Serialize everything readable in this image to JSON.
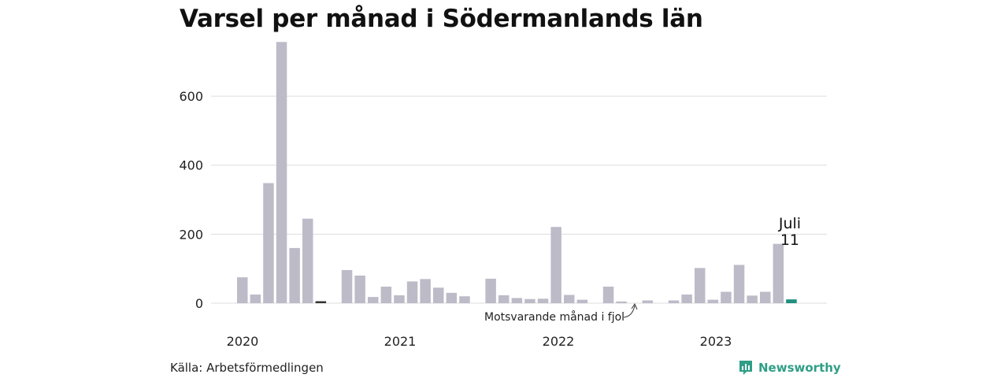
{
  "title": "Varsel per månad i Södermanlands län",
  "source": "Källa: Arbetsförmedlingen",
  "brand": "Newsworthy",
  "colors": {
    "bar": "#bdbbc8",
    "highlight": "#1f8f7f",
    "reference": "#333333",
    "grid": "#dddddd",
    "brand": "#2f9e86"
  },
  "chart_data": {
    "type": "bar",
    "ylim": [
      0,
      760
    ],
    "yticks": [
      0,
      200,
      400,
      600
    ],
    "xticks": [
      "2020",
      "2021",
      "2022",
      "2023"
    ],
    "series": [
      {
        "values": [
          75,
          25,
          348,
          757,
          160,
          245,
          5,
          null,
          96,
          80,
          18,
          48,
          23,
          63,
          70,
          45,
          30,
          20,
          null,
          71,
          23,
          15,
          12,
          13,
          221,
          24,
          10,
          null,
          48,
          5,
          null,
          8,
          null,
          8,
          25,
          102,
          10,
          33,
          111,
          22,
          33,
          172,
          11
        ]
      }
    ],
    "highlight_label": "Juli",
    "highlight_value": "11",
    "reference_note": "Motsvarande månad i fjol"
  }
}
